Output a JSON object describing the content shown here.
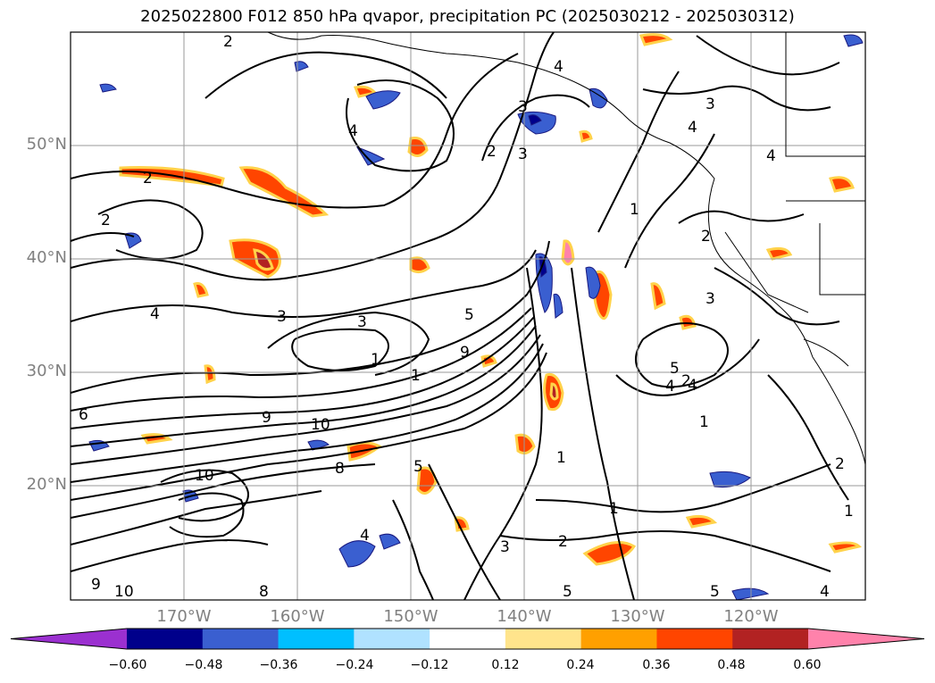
{
  "title": "2025022800 F012 850 hPa qvapor, precipitation PC (2025030212 - 2025030312)",
  "latitude_labels": [
    {
      "label": "50°N"
    },
    {
      "label": "40°N"
    },
    {
      "label": "30°N"
    },
    {
      "label": "20°N"
    }
  ],
  "longitude_labels": [
    {
      "label": "170°W"
    },
    {
      "label": "160°W"
    },
    {
      "label": "150°W"
    },
    {
      "label": "140°W"
    },
    {
      "label": "130°W"
    },
    {
      "label": "120°W"
    }
  ],
  "colorbar": {
    "ticks": [
      "−0.60",
      "−0.48",
      "−0.36",
      "−0.24",
      "−0.12",
      "0.12",
      "0.24",
      "0.36",
      "0.48",
      "0.60"
    ],
    "colors": [
      "#9b30d0",
      "#00008b",
      "#3a5fd0",
      "#00bfff",
      "#b0e2ff",
      "#ffffff",
      "#ffe48c",
      "#ffa000",
      "#ff4500",
      "#b22222",
      "#ff82ab"
    ]
  },
  "contour_labels": [
    "2",
    "4",
    "3",
    "2",
    "2",
    "4",
    "3",
    "1",
    "2",
    "4",
    "3",
    "3",
    "2",
    "1",
    "5",
    "9",
    "3",
    "4",
    "5",
    "4",
    "1",
    "6",
    "9",
    "10",
    "10",
    "5",
    "1",
    "1",
    "1",
    "3",
    "2",
    "5",
    "4",
    "8",
    "8",
    "10",
    "9",
    "2",
    "5",
    "4",
    "3",
    "2",
    "1",
    "4",
    "4"
  ]
}
